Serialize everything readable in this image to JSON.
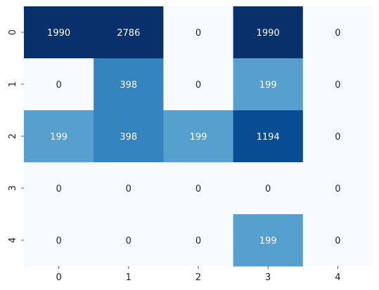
{
  "chart_data": {
    "type": "heatmap",
    "title": "",
    "xlabel": "",
    "ylabel": "",
    "x_categories": [
      "0",
      "1",
      "2",
      "3",
      "4"
    ],
    "y_categories": [
      "0",
      "1",
      "2",
      "3",
      "4"
    ],
    "values": [
      [
        1990,
        2786,
        0,
        1990,
        0
      ],
      [
        0,
        398,
        0,
        199,
        0
      ],
      [
        199,
        398,
        199,
        1194,
        0
      ],
      [
        0,
        0,
        0,
        0,
        0
      ],
      [
        0,
        0,
        0,
        199,
        0
      ]
    ],
    "colormap": "Blues",
    "colorbar": false,
    "annotations": true,
    "grid": false,
    "palette": {
      "low": "#f7fbff",
      "light": "#abd0e6",
      "mid": "#3787c0",
      "high": "#08306b",
      "text_dark": "#262626",
      "text_light": "#ffffff"
    }
  }
}
